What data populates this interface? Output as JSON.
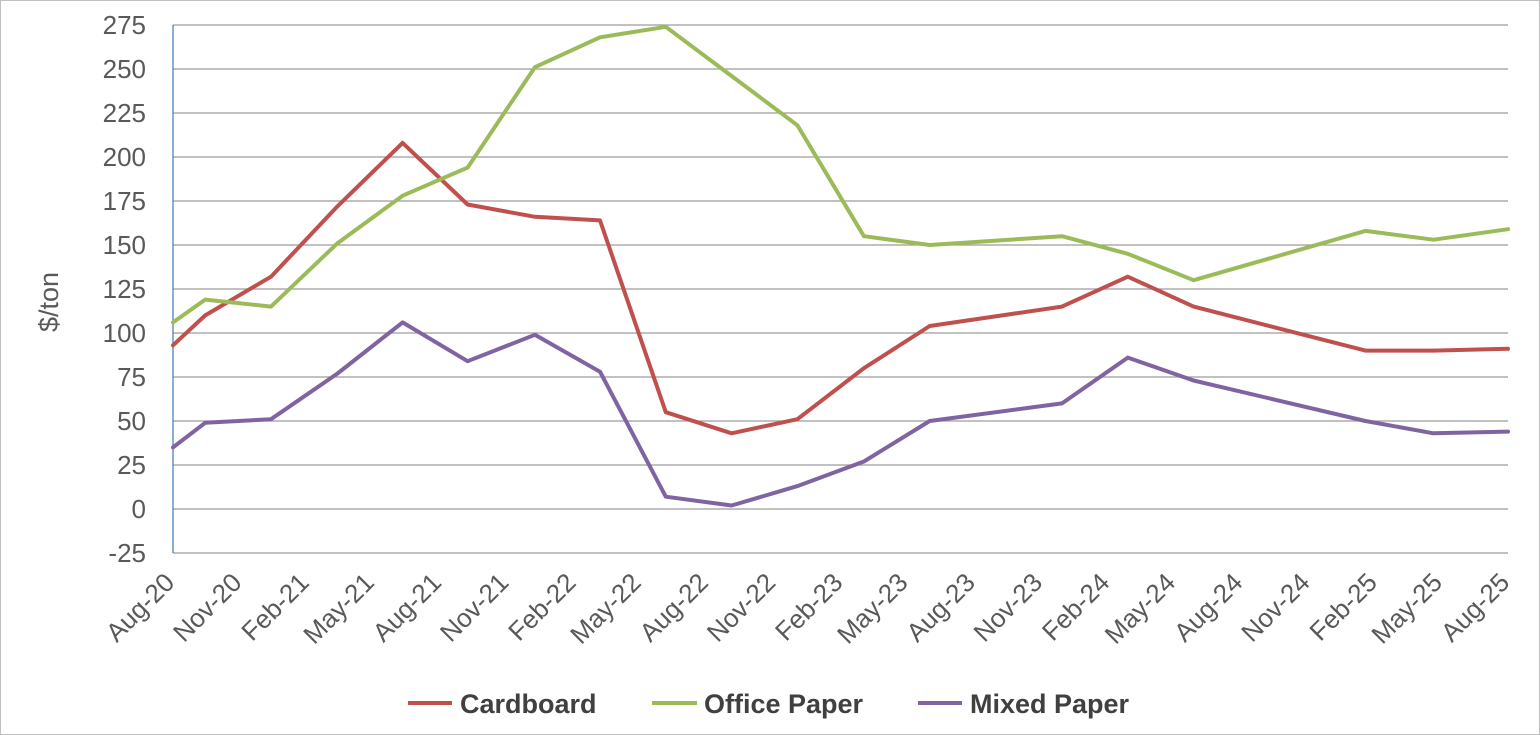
{
  "chart_data": {
    "type": "line",
    "ylabel": "$/ton",
    "ylim": [
      -25,
      275
    ],
    "xlim": [
      "2020-08-01",
      "2025-08-01"
    ],
    "grid": true,
    "legend_position": "bottom",
    "y_tick_labels": [
      "275",
      "250",
      "225",
      "200",
      "175",
      "150",
      "125",
      "100",
      "75",
      "50",
      "25",
      "0",
      "-25"
    ],
    "x_tick_labels": [
      "Aug-20",
      "Nov-20",
      "Feb-21",
      "May-21",
      "Aug-21",
      "Nov-21",
      "Feb-22",
      "May-22",
      "Aug-22",
      "Nov-22",
      "Feb-23",
      "May-23",
      "Aug-23",
      "Nov-23",
      "Feb-24",
      "May-24",
      "Aug-24",
      "Nov-24",
      "Feb-25",
      "May-25",
      "Aug-25"
    ],
    "x": [
      "2020-08-01",
      "2020-09-14",
      "2020-12-13",
      "2021-03-14",
      "2021-06-11",
      "2021-09-08",
      "2021-12-09",
      "2022-03-08",
      "2022-06-06",
      "2022-09-04",
      "2022-12-03",
      "2023-03-04",
      "2023-06-02",
      "2023-11-30",
      "2024-02-28",
      "2024-05-28",
      "2025-01-18",
      "2025-04-21",
      "2025-08-01"
    ],
    "series": [
      {
        "name": "Cardboard",
        "color": "#C0504D",
        "values": [
          93,
          110,
          132,
          172,
          208,
          173,
          166,
          164,
          55,
          43,
          51,
          80,
          104,
          115,
          132,
          115,
          90,
          90,
          91
        ]
      },
      {
        "name": "Office Paper",
        "color": "#9BBB59",
        "values": [
          106,
          119,
          115,
          151,
          178,
          194,
          251,
          268,
          274,
          246,
          218,
          155,
          150,
          155,
          145,
          130,
          158,
          153,
          159
        ]
      },
      {
        "name": "Mixed Paper",
        "color": "#8064A2",
        "values": [
          35,
          49,
          51,
          77,
          106,
          84,
          99,
          78,
          7,
          2,
          13,
          27,
          50,
          60,
          86,
          73,
          50,
          43,
          44
        ]
      }
    ]
  }
}
